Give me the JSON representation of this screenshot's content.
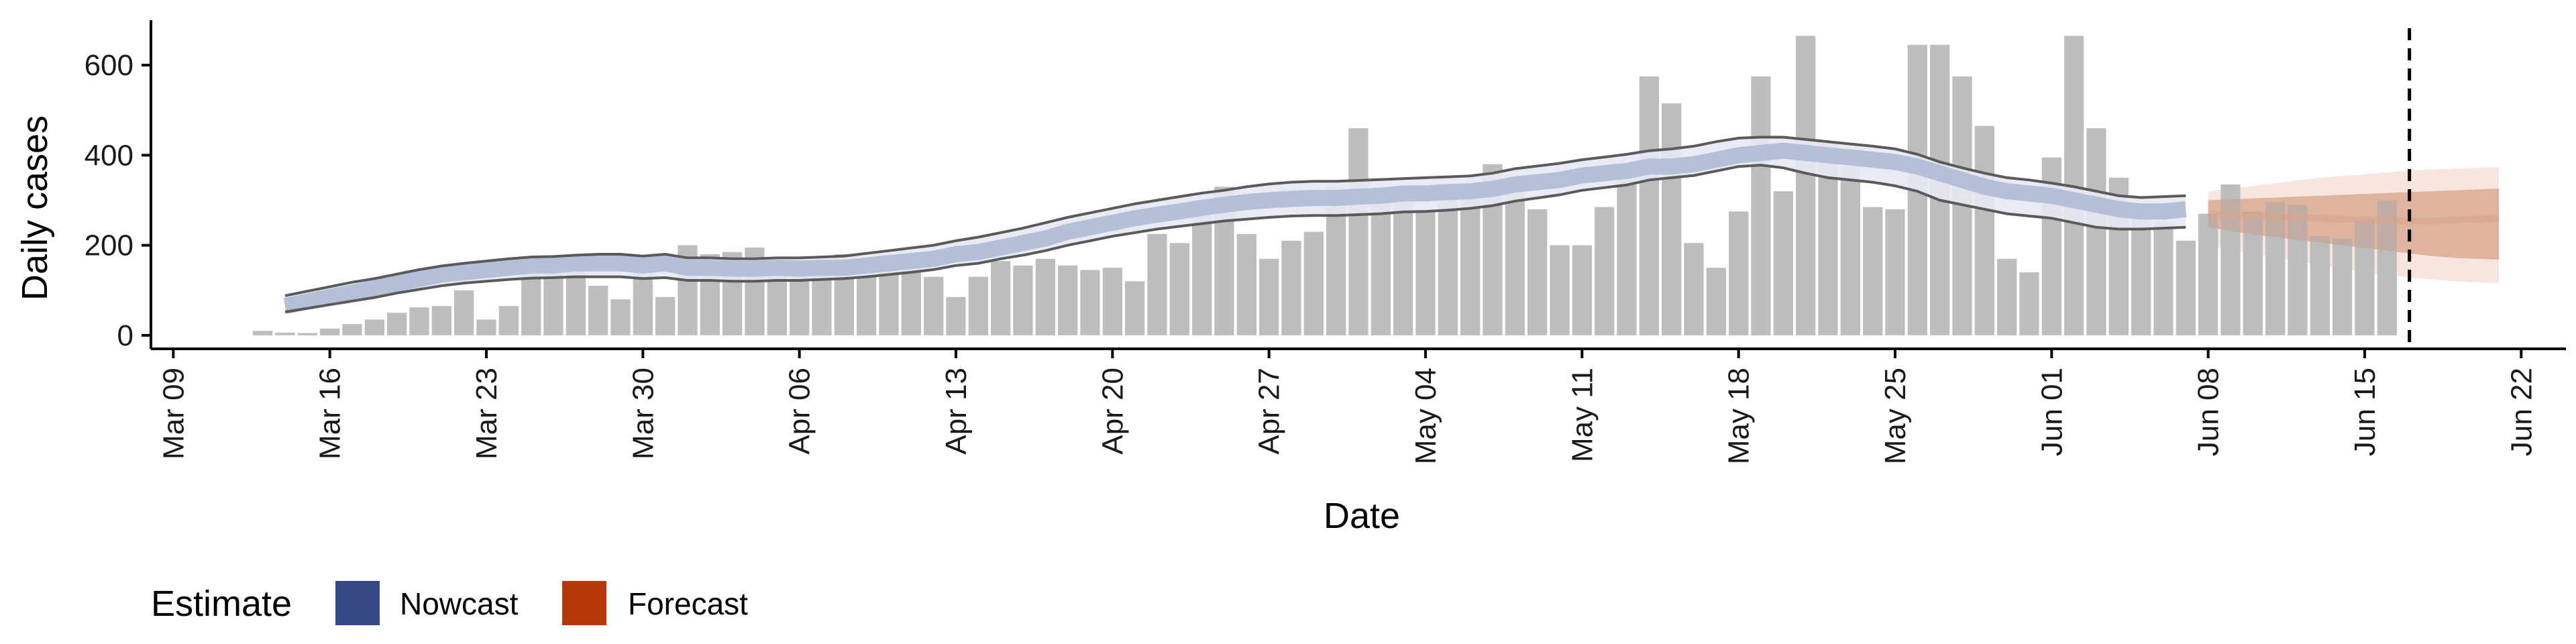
{
  "chart_data": {
    "type": "bar",
    "xlabel": "Date",
    "ylabel": "Daily cases",
    "ylim": [
      -30,
      700
    ],
    "xlim": [
      "2020-03-08",
      "2020-06-24"
    ],
    "x_ticks": [
      "2020-03-09",
      "2020-03-16",
      "2020-03-23",
      "2020-03-30",
      "2020-04-06",
      "2020-04-13",
      "2020-04-20",
      "2020-04-27",
      "2020-05-04",
      "2020-05-11",
      "2020-05-18",
      "2020-05-25",
      "2020-06-01",
      "2020-06-08",
      "2020-06-15",
      "2020-06-22"
    ],
    "x_tick_labels": [
      "Mar 09",
      "Mar 16",
      "Mar 23",
      "Mar 30",
      "Apr 06",
      "Apr 13",
      "Apr 20",
      "Apr 27",
      "May 04",
      "May 11",
      "May 18",
      "May 25",
      "Jun 01",
      "Jun 08",
      "Jun 15",
      "Jun 22"
    ],
    "y_ticks": [
      0,
      200,
      400,
      600
    ],
    "grid": false,
    "bars": {
      "start_date": "2020-03-13",
      "values": [
        10,
        6,
        5,
        15,
        25,
        35,
        50,
        62,
        65,
        100,
        35,
        65,
        140,
        150,
        175,
        110,
        80,
        155,
        85,
        200,
        180,
        185,
        195,
        160,
        170,
        140,
        180,
        130,
        180,
        160,
        130,
        85,
        130,
        165,
        155,
        170,
        155,
        145,
        150,
        120,
        225,
        205,
        300,
        330,
        225,
        170,
        210,
        230,
        330,
        460,
        330,
        300,
        280,
        335,
        325,
        380,
        345,
        280,
        200,
        200,
        285,
        375,
        575,
        515,
        205,
        150,
        275,
        575,
        320,
        665,
        430,
        375,
        285,
        280,
        645,
        645,
        575,
        465,
        170,
        140,
        395,
        665,
        460,
        350,
        275,
        250,
        210,
        270,
        335,
        275,
        295,
        290,
        220,
        215,
        255,
        300
      ]
    },
    "nowcast": {
      "start_date": "2020-03-14",
      "end_date": "2020-06-07",
      "median": [
        65,
        75,
        85,
        95,
        105,
        115,
        125,
        135,
        140,
        145,
        150,
        155,
        155,
        160,
        160,
        160,
        155,
        160,
        150,
        150,
        148,
        148,
        150,
        148,
        150,
        150,
        155,
        160,
        165,
        170,
        180,
        185,
        195,
        205,
        215,
        230,
        240,
        250,
        260,
        268,
        275,
        283,
        290,
        296,
        300,
        303,
        305,
        305,
        308,
        310,
        315,
        315,
        318,
        320,
        325,
        335,
        340,
        345,
        355,
        360,
        365,
        375,
        375,
        380,
        390,
        400,
        405,
        410,
        405,
        400,
        395,
        390,
        385,
        375,
        360,
        345,
        330,
        320,
        315,
        310,
        300,
        290,
        280,
        275,
        275,
        280
      ],
      "lower": [
        52,
        60,
        68,
        76,
        84,
        94,
        102,
        110,
        116,
        120,
        124,
        127,
        128,
        130,
        130,
        130,
        126,
        128,
        122,
        122,
        120,
        120,
        122,
        122,
        124,
        126,
        130,
        135,
        140,
        146,
        155,
        160,
        170,
        178,
        188,
        200,
        210,
        220,
        228,
        236,
        242,
        248,
        254,
        258,
        262,
        265,
        266,
        266,
        268,
        270,
        274,
        275,
        278,
        282,
        288,
        298,
        305,
        312,
        322,
        328,
        334,
        345,
        350,
        355,
        365,
        375,
        378,
        372,
        360,
        350,
        345,
        340,
        332,
        320,
        300,
        290,
        280,
        270,
        265,
        260,
        250,
        240,
        236,
        236,
        238,
        240
      ],
      "upper": [
        88,
        98,
        108,
        118,
        126,
        136,
        146,
        154,
        160,
        165,
        170,
        174,
        175,
        178,
        180,
        180,
        176,
        180,
        172,
        172,
        170,
        170,
        172,
        172,
        174,
        176,
        182,
        188,
        194,
        200,
        210,
        218,
        228,
        238,
        250,
        262,
        272,
        282,
        292,
        300,
        308,
        316,
        322,
        330,
        336,
        340,
        342,
        342,
        344,
        346,
        348,
        350,
        352,
        354,
        360,
        370,
        376,
        382,
        390,
        396,
        402,
        410,
        414,
        420,
        430,
        438,
        440,
        440,
        435,
        430,
        425,
        420,
        414,
        402,
        385,
        372,
        360,
        350,
        345,
        338,
        330,
        320,
        310,
        306,
        308,
        310
      ]
    },
    "forecast": {
      "start_date": "2020-06-08",
      "end_date": "2020-06-21",
      "median": [
        270,
        268,
        266,
        264,
        262,
        260,
        258,
        256,
        255,
        254,
        254,
        256,
        258,
        260
      ],
      "lower_50": [
        240,
        232,
        224,
        218,
        212,
        206,
        200,
        194,
        188,
        182,
        176,
        172,
        170,
        168
      ],
      "upper_50": [
        300,
        302,
        304,
        306,
        308,
        310,
        312,
        314,
        316,
        318,
        320,
        322,
        324,
        326
      ],
      "lower_90": [
        200,
        190,
        180,
        172,
        164,
        156,
        148,
        140,
        134,
        128,
        124,
        120,
        118,
        116
      ],
      "upper_90": [
        320,
        326,
        332,
        338,
        344,
        350,
        354,
        358,
        362,
        366,
        368,
        370,
        372,
        374
      ]
    },
    "vline_date": "2020-06-17",
    "legend": {
      "title": "Estimate",
      "position": "bottom",
      "items": [
        {
          "label": "Nowcast",
          "color": "#354a87"
        },
        {
          "label": "Forecast",
          "color": "#b5380a"
        }
      ]
    },
    "colors": {
      "bar": "#bdbdbd",
      "nowcast_band": "#b6bfd8",
      "nowcast_outer": "#e6e9f3",
      "forecast_band": "#e5c2b0",
      "forecast_outer": "#f4e2d9",
      "ci_line": "#5a5a5a",
      "axis": "#000000"
    }
  }
}
